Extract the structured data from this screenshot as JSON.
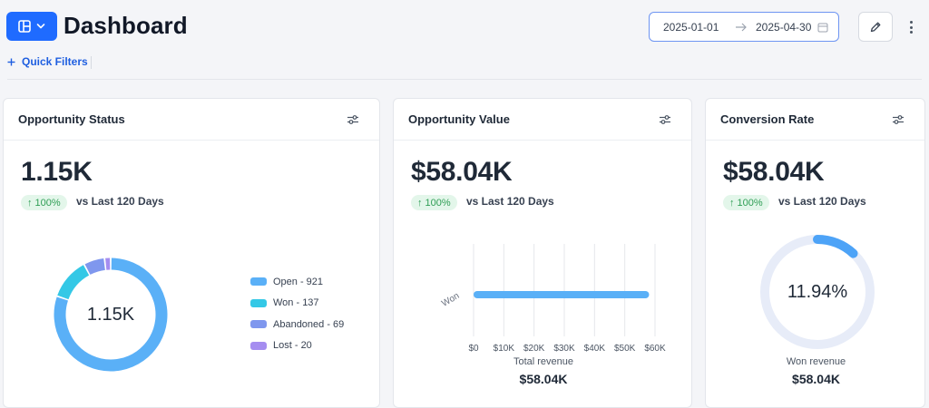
{
  "header": {
    "title": "Dashboard",
    "date_start": "2025-01-01",
    "date_end": "2025-04-30",
    "quick_filters_label": "Quick Filters"
  },
  "colors": {
    "primary": "#1f6bff",
    "positive_bg": "#e3f6ea",
    "positive_text": "#2f9e55"
  },
  "cards": {
    "status": {
      "title": "Opportunity Status",
      "metric": "1.15K",
      "change": "100%",
      "comparison": "vs Last 120 Days",
      "center_label": "1.15K",
      "legend": [
        {
          "label": "Open - 921",
          "value": 921,
          "color": "#5ab0f7"
        },
        {
          "label": "Won - 137",
          "value": 137,
          "color": "#34c8e6"
        },
        {
          "label": "Abandoned - 69",
          "value": 69,
          "color": "#7f97ee"
        },
        {
          "label": "Lost - 20",
          "value": 20,
          "color": "#a58df0"
        }
      ]
    },
    "value": {
      "title": "Opportunity Value",
      "metric": "$58.04K",
      "change": "100%",
      "comparison": "vs Last 120 Days",
      "caption_label": "Total revenue",
      "caption_value": "$58.04K"
    },
    "conversion": {
      "title": "Conversion Rate",
      "metric": "$58.04K",
      "change": "100%",
      "comparison": "vs Last 120 Days",
      "gauge_label": "11.94%",
      "gauge_fraction": 0.1194,
      "caption_label": "Won revenue",
      "caption_value": "$58.04K"
    }
  },
  "chart_data": {
    "type": "bar",
    "orientation": "horizontal",
    "categories": [
      "Won"
    ],
    "values": [
      58040
    ],
    "xlim": [
      0,
      60000
    ],
    "xticks": [
      "$0",
      "$10K",
      "$20K",
      "$30K",
      "$40K",
      "$50K",
      "$60K"
    ],
    "grid": true,
    "bar_color": "#5ab0f7"
  }
}
